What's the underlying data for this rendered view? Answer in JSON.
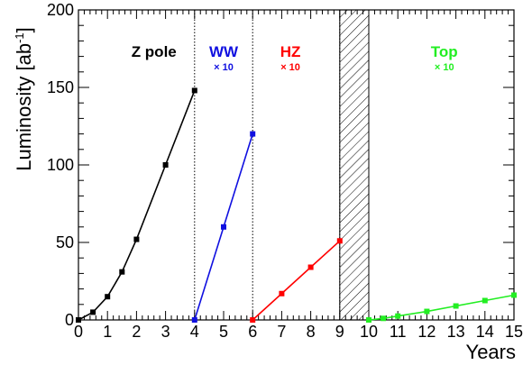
{
  "chart_data": {
    "type": "line",
    "xlabel": "Years",
    "ylabel": "Luminosity [ab",
    "ylabel_sup": "-1",
    "ylabel_close": "]",
    "xlim": [
      0,
      15
    ],
    "ylim": [
      0,
      200
    ],
    "x_tick_labels": [
      "0",
      "1",
      "2",
      "3",
      "4",
      "5",
      "6",
      "7",
      "8",
      "9",
      "10",
      "11",
      "12",
      "13",
      "14",
      "15"
    ],
    "y_tick_labels": [
      "0",
      "50",
      "100",
      "150",
      "200"
    ],
    "period_boundaries": [
      4,
      6,
      9,
      10
    ],
    "hatched_region": [
      9,
      10
    ],
    "grid": false,
    "legend": "none",
    "series": [
      {
        "name": "Z pole",
        "scale": "",
        "color": "#000000",
        "x": [
          0,
          0.5,
          1,
          1.5,
          2,
          3,
          4
        ],
        "y": [
          0,
          5,
          15,
          31,
          52,
          100,
          148
        ]
      },
      {
        "name": "WW",
        "scale": "× 10",
        "color": "#1010e0",
        "x": [
          4,
          5,
          6
        ],
        "y": [
          0,
          60,
          120
        ]
      },
      {
        "name": "HZ",
        "scale": "× 10",
        "color": "#ff0000",
        "x": [
          6,
          7,
          8,
          9
        ],
        "y": [
          0,
          17,
          34,
          51
        ]
      },
      {
        "name": "Top",
        "scale": "× 10",
        "color": "#22ee22",
        "x": [
          10,
          10.5,
          11,
          12,
          13,
          14,
          15
        ],
        "y": [
          0,
          1,
          2.5,
          5.5,
          9,
          12.5,
          16
        ]
      }
    ]
  }
}
